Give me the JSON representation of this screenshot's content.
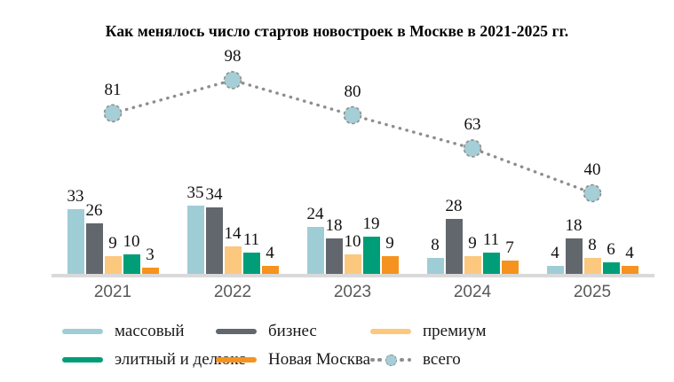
{
  "title": "Как менялось число стартов новостроек в Москве в 2021-2025 гг.",
  "chart_data": {
    "type": "bar",
    "subtype": "grouped-bars-with-total-line",
    "title": "Как менялось число стартов новостроек в Москве в 2021-2025 гг.",
    "categories": [
      "2021",
      "2022",
      "2023",
      "2024",
      "2025"
    ],
    "series": [
      {
        "name": "массовый",
        "color": "#9fcdd6",
        "values": [
          33,
          35,
          24,
          8,
          4
        ]
      },
      {
        "name": "бизнес",
        "color": "#62676d",
        "values": [
          26,
          34,
          18,
          28,
          18
        ]
      },
      {
        "name": "премиум",
        "color": "#fbc87e",
        "values": [
          9,
          14,
          10,
          9,
          8
        ]
      },
      {
        "name": "элитный и делюкс",
        "color": "#009e78",
        "values": [
          10,
          11,
          19,
          11,
          6
        ]
      },
      {
        "name": "Новая Москва",
        "color": "#f6931e",
        "values": [
          3,
          4,
          9,
          7,
          4
        ]
      }
    ],
    "line_series": {
      "name": "всего",
      "values": [
        81,
        98,
        80,
        63,
        40
      ],
      "style": "dotted",
      "line_color": "#8d8d8d",
      "marker_fill": "#a5ced7",
      "marker_stroke": "#8f8f8f"
    },
    "value_labels": true,
    "grid": false,
    "ylim": [
      0,
      105
    ],
    "xlabel": "",
    "ylabel": "",
    "legend_position": "bottom",
    "axis_line_color": "#d9d9d9",
    "x_tick_color": "#595959",
    "label_color": "#111111"
  },
  "legend": {
    "items": [
      {
        "label": "массовый",
        "swatch": "line",
        "color": "#9fcdd6"
      },
      {
        "label": "бизнес",
        "swatch": "line",
        "color": "#62676d"
      },
      {
        "label": "премиум",
        "swatch": "line",
        "color": "#fbc87e"
      },
      {
        "label": "элитный и делюкс",
        "swatch": "line",
        "color": "#009e78"
      },
      {
        "label": "Новая Москва",
        "swatch": "line",
        "color": "#f6931e"
      },
      {
        "label": "всего",
        "swatch": "dotted-marker",
        "color": "#a5ced7"
      }
    ]
  }
}
